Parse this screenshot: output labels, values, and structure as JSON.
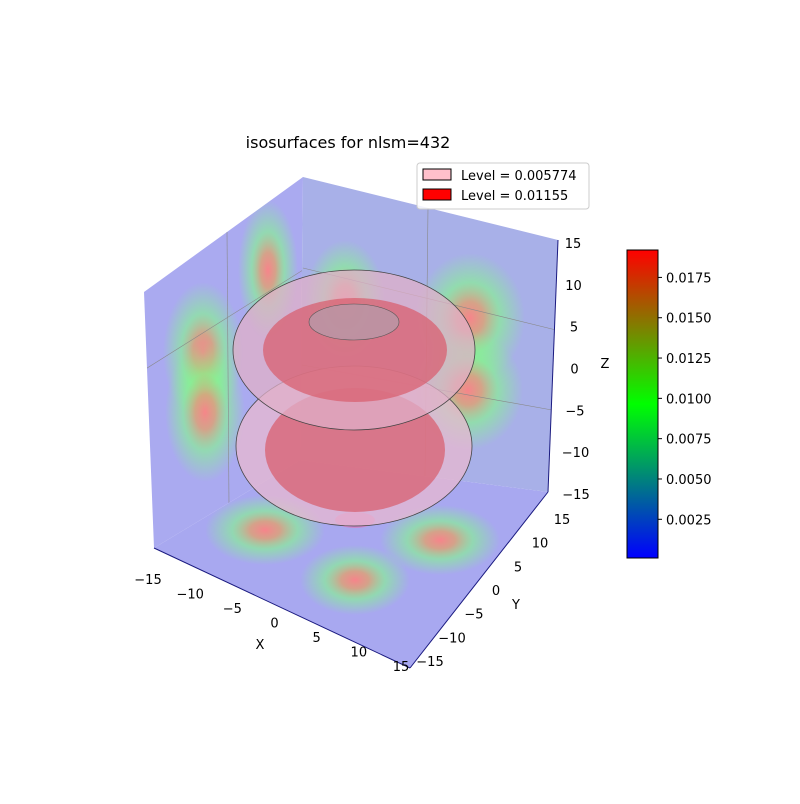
{
  "chart_data": {
    "type": "3d-isosurface",
    "title": "isosurfaces for nlsm=432",
    "xlabel": "X",
    "ylabel": "Y",
    "zlabel": "Z",
    "xlim": [
      -15,
      15
    ],
    "ylim": [
      -15,
      15
    ],
    "zlim": [
      -15,
      15
    ],
    "x_ticks": [
      "−15",
      "−10",
      "−5",
      "0",
      "5",
      "10",
      "15"
    ],
    "y_ticks": [
      "−15",
      "−10",
      "−5",
      "0",
      "5",
      "10",
      "15"
    ],
    "z_ticks": [
      "−15",
      "−10",
      "−5",
      "0",
      "5",
      "10",
      "15"
    ],
    "legend": {
      "placement": "top-right",
      "entries": [
        {
          "label": "Level = 0.005774",
          "level": 0.005774,
          "color": "#ffc0cb"
        },
        {
          "label": "Level = 0.01155",
          "level": 0.01155,
          "color": "#ff0000"
        }
      ]
    },
    "colorbar": {
      "range": [
        0.0001,
        0.0192
      ],
      "ticks": [
        0.0025,
        0.005,
        0.0075,
        0.01,
        0.0125,
        0.015,
        0.0175
      ],
      "tick_labels": [
        "0.0025",
        "0.0050",
        "0.0075",
        "0.0100",
        "0.0125",
        "0.0150",
        "0.0175"
      ],
      "colors": [
        "#0000ff",
        "#00ff00",
        "#ff0000"
      ]
    },
    "pane_color": "#aaaaf0",
    "grid": true
  }
}
